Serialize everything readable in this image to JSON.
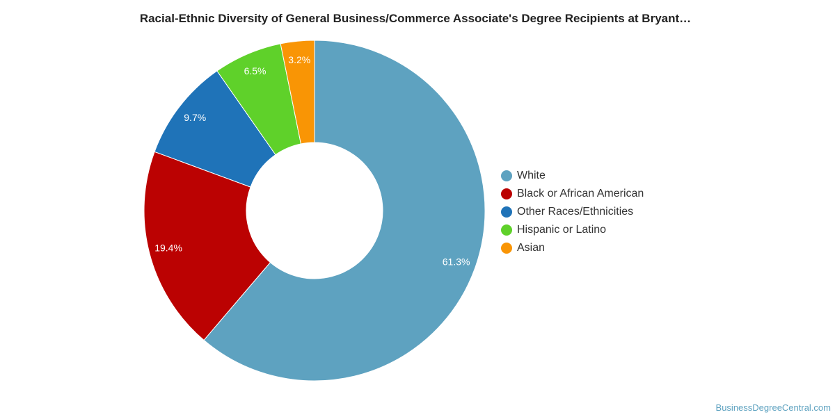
{
  "chart_data": {
    "type": "pie",
    "donut": true,
    "title": "Racial-Ethnic Diversity of General Business/Commerce Associate's Degree Recipients at Bryant…",
    "legend_position": "right",
    "slices": [
      {
        "name": "White",
        "value": 61.3,
        "label": "61.3%",
        "color": "#5ea2c0"
      },
      {
        "name": "Black or African American",
        "value": 19.4,
        "label": "19.4%",
        "color": "#bb0202"
      },
      {
        "name": "Other Races/Ethnicities",
        "value": 9.7,
        "label": "9.7%",
        "color": "#1f73b8"
      },
      {
        "name": "Hispanic or Latino",
        "value": 6.5,
        "label": "6.5%",
        "color": "#5fd12a"
      },
      {
        "name": "Asian",
        "value": 3.2,
        "label": "3.2%",
        "color": "#f99505"
      }
    ]
  },
  "credit": "BusinessDegreeCentral.com"
}
